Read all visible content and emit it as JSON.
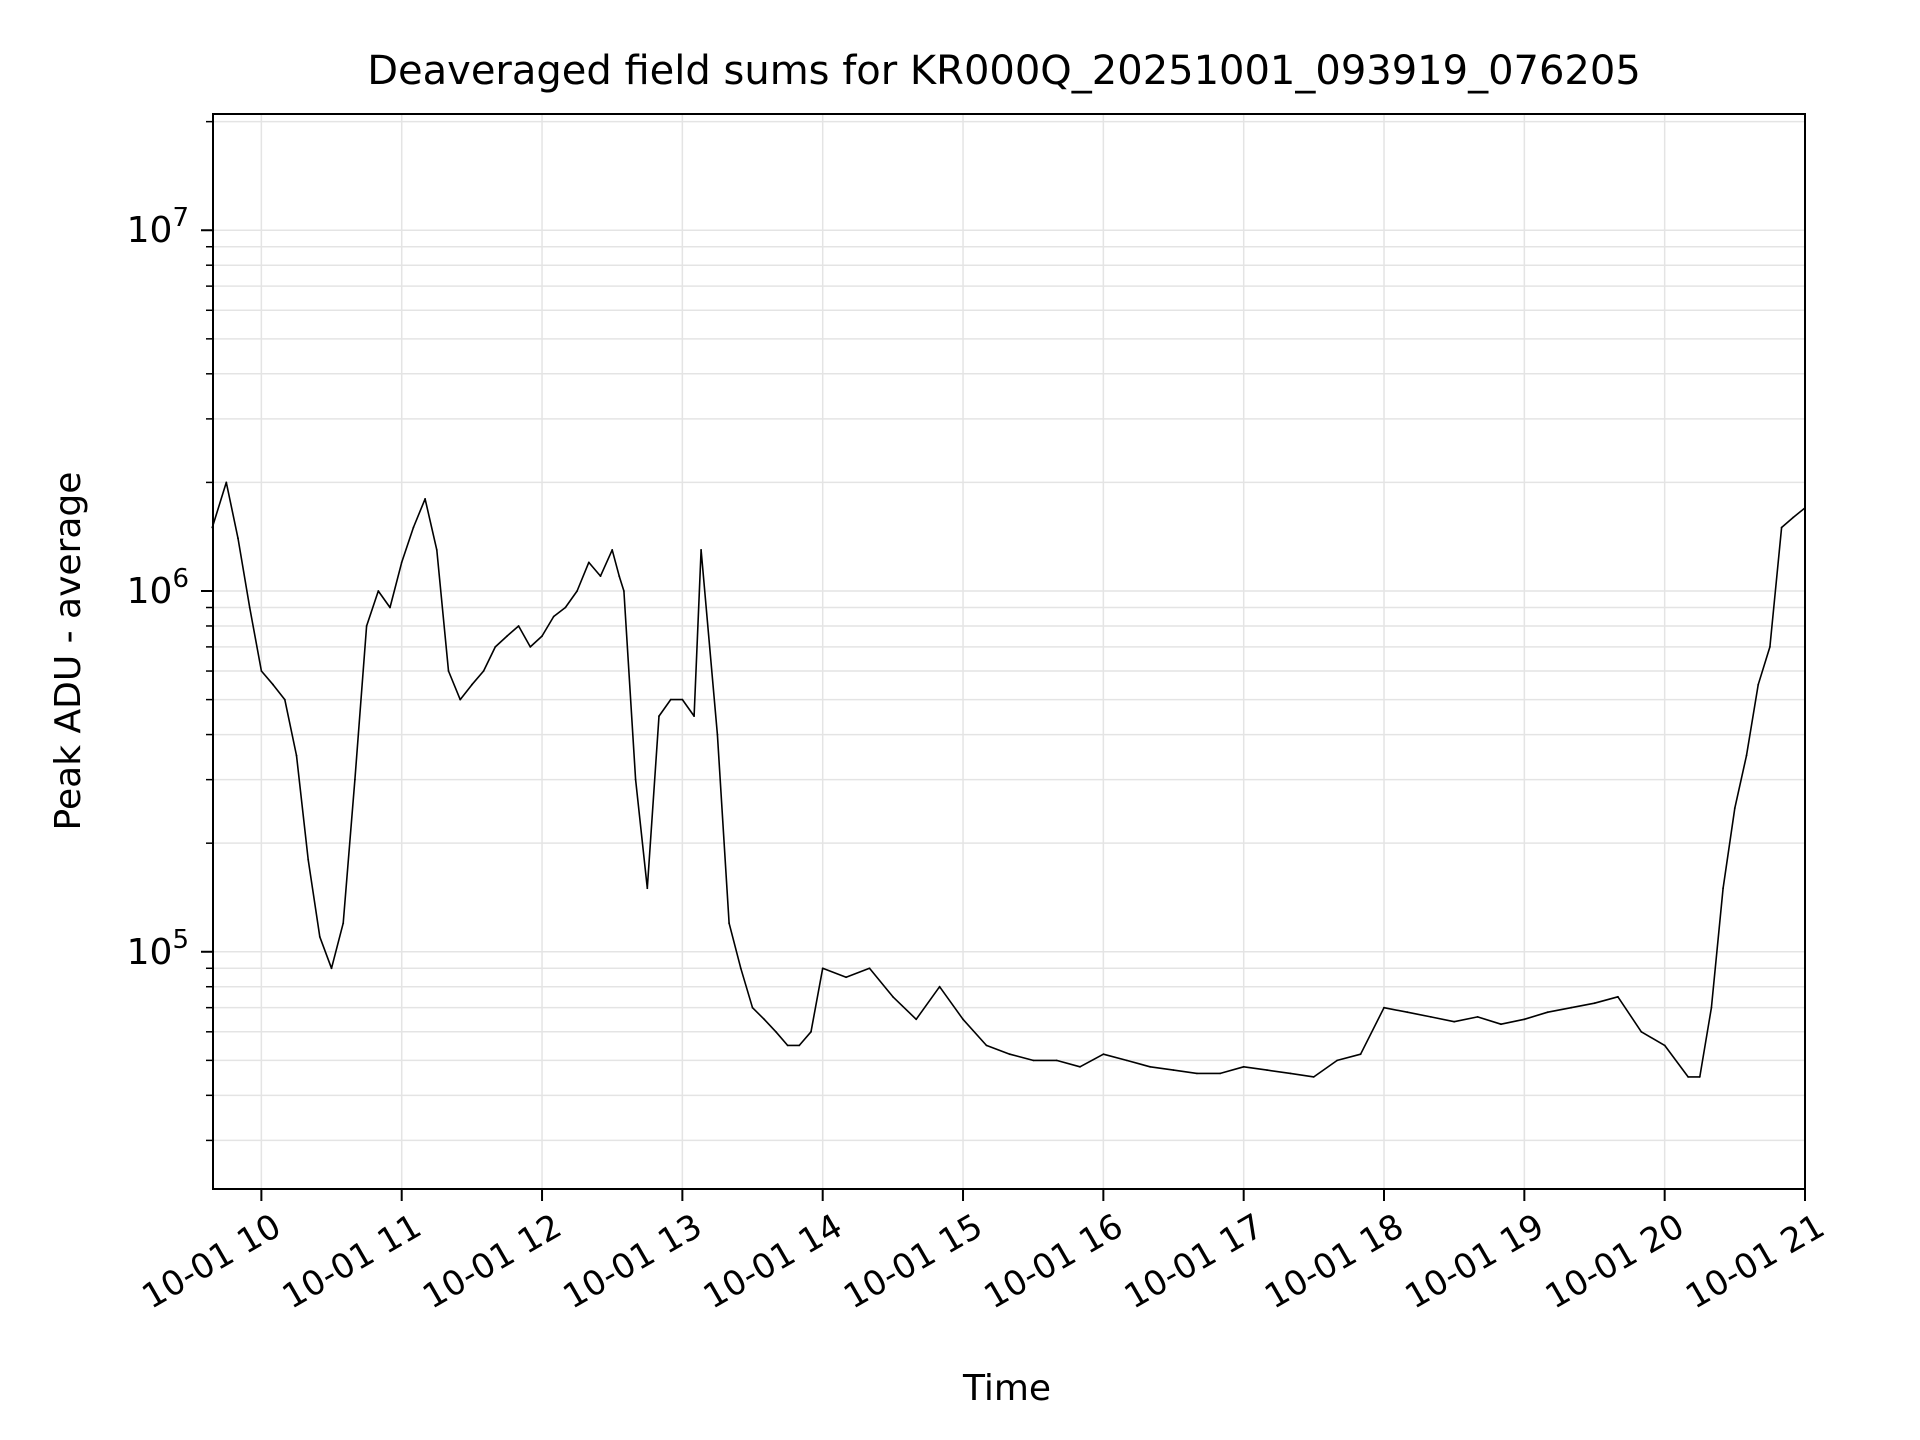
{
  "chart_data": {
    "type": "line",
    "title": "Deaveraged field sums for KR000Q_20251001_093919_076205",
    "xlabel": "Time",
    "ylabel": "Peak ADU - average",
    "yscale": "log",
    "xlim": [
      "2025-10-01 09:39:19",
      "2025-10-01 21:00:00"
    ],
    "ylim": [
      22000,
      21000000
    ],
    "grid": true,
    "legend": "none",
    "line_color": "#000000",
    "x_ticks": [
      {
        "value": "2025-10-01 10:00",
        "label": "10-01 10"
      },
      {
        "value": "2025-10-01 11:00",
        "label": "10-01 11"
      },
      {
        "value": "2025-10-01 12:00",
        "label": "10-01 12"
      },
      {
        "value": "2025-10-01 13:00",
        "label": "10-01 13"
      },
      {
        "value": "2025-10-01 14:00",
        "label": "10-01 14"
      },
      {
        "value": "2025-10-01 15:00",
        "label": "10-01 15"
      },
      {
        "value": "2025-10-01 16:00",
        "label": "10-01 16"
      },
      {
        "value": "2025-10-01 17:00",
        "label": "10-01 17"
      },
      {
        "value": "2025-10-01 18:00",
        "label": "10-01 18"
      },
      {
        "value": "2025-10-01 19:00",
        "label": "10-01 19"
      },
      {
        "value": "2025-10-01 20:00",
        "label": "10-01 20"
      },
      {
        "value": "2025-10-01 21:00",
        "label": "10-01 21"
      }
    ],
    "y_ticks": [
      {
        "value": 100000,
        "base": "10",
        "exp": "5"
      },
      {
        "value": 1000000,
        "base": "10",
        "exp": "6"
      },
      {
        "value": 10000000,
        "base": "10",
        "exp": "7"
      }
    ],
    "series": [
      {
        "x": [
          "2025-10-01 09:39",
          "2025-10-01 09:45",
          "2025-10-01 09:50",
          "2025-10-01 09:55",
          "2025-10-01 10:00",
          "2025-10-01 10:05",
          "2025-10-01 10:10",
          "2025-10-01 10:15",
          "2025-10-01 10:20",
          "2025-10-01 10:25",
          "2025-10-01 10:30",
          "2025-10-01 10:35",
          "2025-10-01 10:40",
          "2025-10-01 10:45",
          "2025-10-01 10:50",
          "2025-10-01 10:55",
          "2025-10-01 11:00",
          "2025-10-01 11:05",
          "2025-10-01 11:10",
          "2025-10-01 11:15",
          "2025-10-01 11:20",
          "2025-10-01 11:25",
          "2025-10-01 11:30",
          "2025-10-01 11:35",
          "2025-10-01 11:40",
          "2025-10-01 11:45",
          "2025-10-01 11:50",
          "2025-10-01 11:55",
          "2025-10-01 12:00",
          "2025-10-01 12:05",
          "2025-10-01 12:10",
          "2025-10-01 12:15",
          "2025-10-01 12:20",
          "2025-10-01 12:25",
          "2025-10-01 12:30",
          "2025-10-01 12:33",
          "2025-10-01 12:35",
          "2025-10-01 12:40",
          "2025-10-01 12:45",
          "2025-10-01 12:50",
          "2025-10-01 12:55",
          "2025-10-01 13:00",
          "2025-10-01 13:05",
          "2025-10-01 13:08",
          "2025-10-01 13:15",
          "2025-10-01 13:20",
          "2025-10-01 13:25",
          "2025-10-01 13:30",
          "2025-10-01 13:35",
          "2025-10-01 13:40",
          "2025-10-01 13:45",
          "2025-10-01 13:50",
          "2025-10-01 13:55",
          "2025-10-01 14:00",
          "2025-10-01 14:10",
          "2025-10-01 14:20",
          "2025-10-01 14:30",
          "2025-10-01 14:40",
          "2025-10-01 14:50",
          "2025-10-01 15:00",
          "2025-10-01 15:10",
          "2025-10-01 15:20",
          "2025-10-01 15:30",
          "2025-10-01 15:40",
          "2025-10-01 15:50",
          "2025-10-01 16:00",
          "2025-10-01 16:10",
          "2025-10-01 16:20",
          "2025-10-01 16:30",
          "2025-10-01 16:40",
          "2025-10-01 16:50",
          "2025-10-01 17:00",
          "2025-10-01 17:10",
          "2025-10-01 17:20",
          "2025-10-01 17:30",
          "2025-10-01 17:40",
          "2025-10-01 17:50",
          "2025-10-01 18:00",
          "2025-10-01 18:10",
          "2025-10-01 18:20",
          "2025-10-01 18:30",
          "2025-10-01 18:40",
          "2025-10-01 18:50",
          "2025-10-01 19:00",
          "2025-10-01 19:10",
          "2025-10-01 19:20",
          "2025-10-01 19:30",
          "2025-10-01 19:40",
          "2025-10-01 19:50",
          "2025-10-01 20:00",
          "2025-10-01 20:10",
          "2025-10-01 20:15",
          "2025-10-01 20:20",
          "2025-10-01 20:25",
          "2025-10-01 20:30",
          "2025-10-01 20:35",
          "2025-10-01 20:40",
          "2025-10-01 20:45",
          "2025-10-01 20:50",
          "2025-10-01 20:55",
          "2025-10-01 21:00"
        ],
        "y": [
          1500000,
          2000000,
          1400000,
          900000,
          600000,
          550000,
          500000,
          350000,
          180000,
          110000,
          90000,
          120000,
          300000,
          800000,
          1000000,
          900000,
          1200000,
          1500000,
          1800000,
          1300000,
          600000,
          500000,
          550000,
          600000,
          700000,
          750000,
          800000,
          700000,
          750000,
          850000,
          900000,
          1000000,
          1200000,
          1100000,
          1300000,
          1100000,
          1000000,
          300000,
          150000,
          450000,
          500000,
          500000,
          450000,
          1300000,
          400000,
          120000,
          90000,
          70000,
          65000,
          60000,
          55000,
          55000,
          60000,
          90000,
          85000,
          90000,
          75000,
          65000,
          80000,
          65000,
          55000,
          52000,
          50000,
          50000,
          48000,
          52000,
          50000,
          48000,
          47000,
          46000,
          46000,
          48000,
          47000,
          46000,
          45000,
          50000,
          52000,
          70000,
          68000,
          66000,
          64000,
          66000,
          63000,
          65000,
          68000,
          70000,
          72000,
          75000,
          60000,
          55000,
          45000,
          45000,
          70000,
          150000,
          250000,
          350000,
          550000,
          700000,
          1500000,
          1600000,
          1700000
        ]
      }
    ]
  }
}
